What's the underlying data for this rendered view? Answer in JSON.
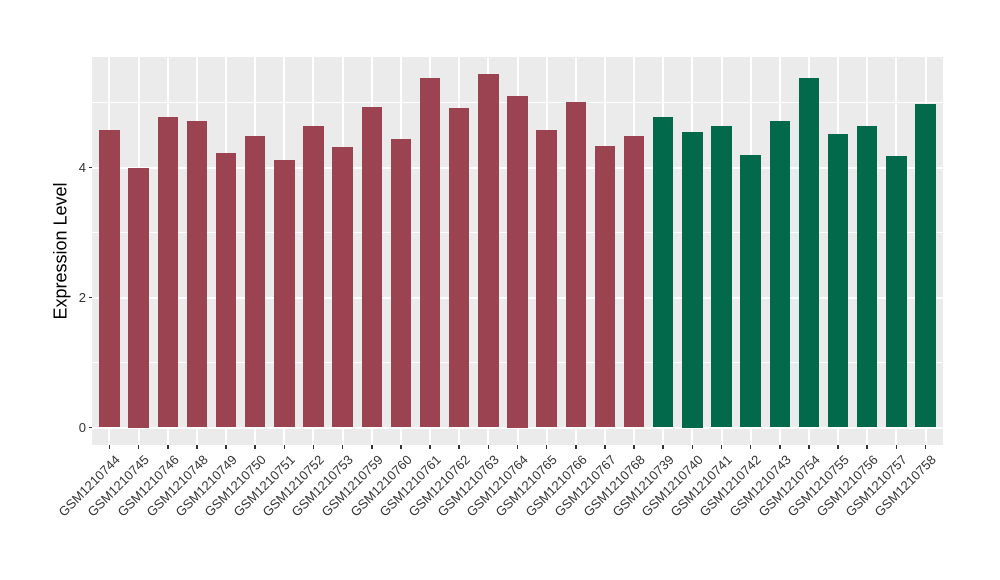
{
  "chart_data": {
    "type": "bar",
    "title": "",
    "ylabel": "Expression Level",
    "xlabel": "",
    "categories": [
      "GSM1210744",
      "GSM1210745",
      "GSM1210746",
      "GSM1210748",
      "GSM1210749",
      "GSM1210750",
      "GSM1210751",
      "GSM1210752",
      "GSM1210753",
      "GSM1210759",
      "GSM1210760",
      "GSM1210761",
      "GSM1210762",
      "GSM1210763",
      "GSM1210764",
      "GSM1210765",
      "GSM1210766",
      "GSM1210767",
      "GSM1210768",
      "GSM1210739",
      "GSM1210740",
      "GSM1210741",
      "GSM1210742",
      "GSM1210743",
      "GSM1210754",
      "GSM1210755",
      "GSM1210756",
      "GSM1210757",
      "GSM1210758"
    ],
    "values": [
      4.57,
      4.0,
      4.78,
      4.72,
      4.23,
      4.49,
      4.11,
      4.64,
      4.31,
      4.93,
      4.44,
      5.37,
      4.92,
      5.44,
      5.1,
      4.58,
      5.01,
      4.33,
      4.48,
      4.77,
      4.55,
      4.64,
      4.19,
      4.72,
      5.37,
      4.52,
      4.64,
      4.17,
      4.97
    ],
    "groups": [
      0,
      0,
      0,
      0,
      0,
      0,
      0,
      0,
      0,
      0,
      0,
      0,
      0,
      0,
      0,
      0,
      0,
      0,
      0,
      1,
      1,
      1,
      1,
      1,
      1,
      1,
      1,
      1,
      1
    ],
    "group_colors": [
      "#9C4352",
      "#026A4B"
    ],
    "yticks": [
      0,
      2,
      4
    ],
    "yminorticks": [
      1,
      3,
      5
    ],
    "ylim": [
      0,
      5.7
    ],
    "x_label_rotation_deg": 45,
    "legend": "none",
    "panel_background": "#EBEBEB",
    "gridline_color": "#FFFFFF",
    "axis_text_color": "#333333",
    "axis_title_color": "#000000"
  }
}
